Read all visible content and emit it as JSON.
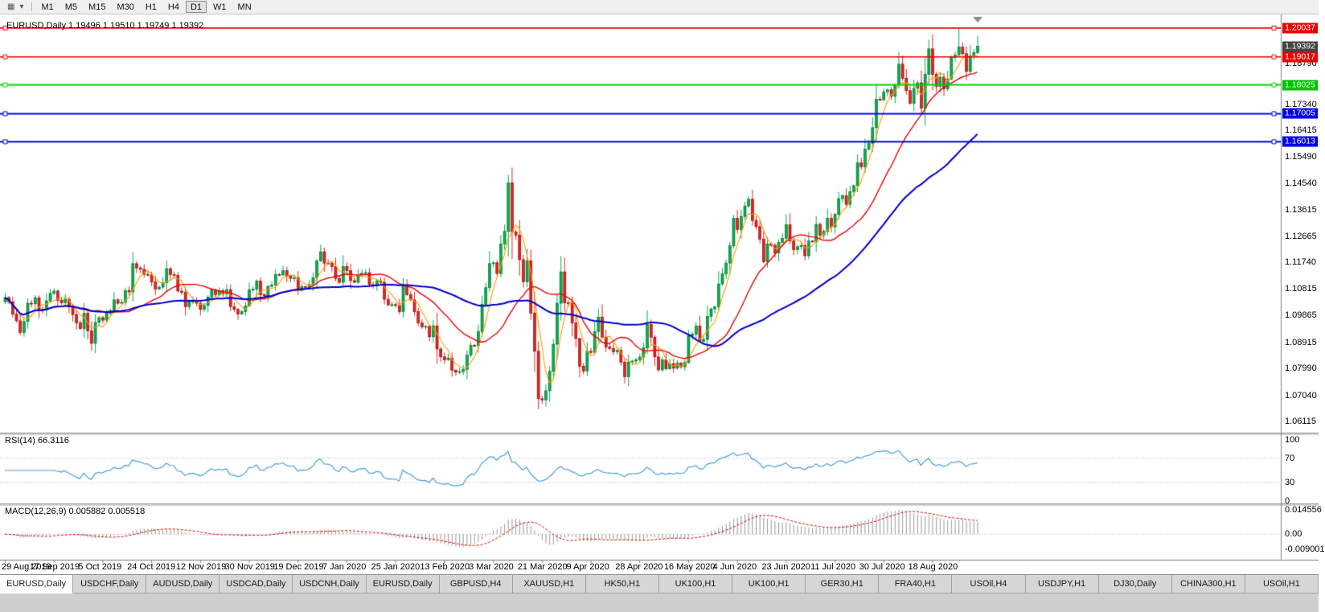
{
  "toolbar": {
    "icons": [
      {
        "name": "chart-type-icon",
        "glyph": "▦"
      },
      {
        "name": "chevron-down-icon",
        "glyph": "▾"
      }
    ],
    "timeframes": [
      {
        "label": "M1",
        "active": false
      },
      {
        "label": "M5",
        "active": false
      },
      {
        "label": "M15",
        "active": false
      },
      {
        "label": "M30",
        "active": false
      },
      {
        "label": "H1",
        "active": false
      },
      {
        "label": "H4",
        "active": false
      },
      {
        "label": "D1",
        "active": true
      },
      {
        "label": "W1",
        "active": false
      },
      {
        "label": "MN",
        "active": false
      }
    ]
  },
  "chart": {
    "title": "EURUSD,Daily 1.19496 1.19510 1.19749 1.19392",
    "price_axis_labels": [
      "1.18790",
      "1.17340",
      "1.16415",
      "1.15490",
      "1.14540",
      "1.13615",
      "1.12665",
      "1.11740",
      "1.10815",
      "1.09865",
      "1.08915",
      "1.07990",
      "1.07040",
      "1.06115"
    ],
    "price_markers": [
      {
        "text": "1.20037",
        "color": "#ee0000"
      },
      {
        "text": "1.19392",
        "color": "#444444"
      },
      {
        "text": "1.19017",
        "color": "#ee0000"
      },
      {
        "text": "1.18025",
        "color": "#00c300"
      },
      {
        "text": "1.17005",
        "color": "#0000ee"
      },
      {
        "text": "1.16013",
        "color": "#0000ee"
      }
    ],
    "hlines": [
      {
        "price": 1.20037,
        "color": "#ee0000",
        "width": 1.6
      },
      {
        "price": 1.19017,
        "color": "#ee0000",
        "width": 1.6
      },
      {
        "price": 1.18025,
        "color": "#00d300",
        "width": 2
      },
      {
        "price": 1.17005,
        "color": "#0000ee",
        "width": 2
      },
      {
        "price": 1.16013,
        "color": "#0000ee",
        "width": 2
      }
    ]
  },
  "rsi_panel": {
    "label": "RSI(14) 66.3116",
    "axis_labels": [
      "100",
      "70",
      "30",
      "0"
    ],
    "levels": [
      70,
      30
    ],
    "line_color": "#4a9edc"
  },
  "macd_panel": {
    "label": "MACD(12,26,9) 0.005882 0.005518",
    "axis_labels": [
      "0.014556",
      "0.00",
      "-0.009001"
    ],
    "histogram_color": "#999999",
    "signal_color": "#e00000"
  },
  "tabs": [
    {
      "label": "EURUSD,Daily",
      "active": true
    },
    {
      "label": "USDCHF,Daily",
      "active": false
    },
    {
      "label": "AUDUSD,Daily",
      "active": false
    },
    {
      "label": "USDCAD,Daily",
      "active": false
    },
    {
      "label": "USDCNH,Daily",
      "active": false
    },
    {
      "label": "EURUSD,Daily",
      "active": false
    },
    {
      "label": "GBPUSD,H4",
      "active": false
    },
    {
      "label": "XAUUSD,H1",
      "active": false
    },
    {
      "label": "HK50,H1",
      "active": false
    },
    {
      "label": "UK100,H1",
      "active": false
    },
    {
      "label": "UK100,H1",
      "active": false
    },
    {
      "label": "GER30,H1",
      "active": false
    },
    {
      "label": "FRA40,H1",
      "active": false
    },
    {
      "label": "USOil,H4",
      "active": false
    },
    {
      "label": "USDJPY,H1",
      "active": false
    },
    {
      "label": "DJ30,Daily",
      "active": false
    },
    {
      "label": "CHINA300,H1",
      "active": false
    },
    {
      "label": "USOil,H1",
      "active": false
    }
  ],
  "chart_data": {
    "type": "candlestick",
    "symbol": "EURUSD",
    "timeframe": "Daily",
    "quote_values": [
      "1.19496",
      "1.19510",
      "1.19749",
      "1.19392"
    ],
    "x_labels": [
      "29 Aug 2019",
      "17 Sep 2019",
      "5 Oct 2019",
      "24 Oct 2019",
      "12 Nov 2019",
      "30 Nov 2019",
      "19 Dec 2019",
      "7 Jan 2020",
      "25 Jan 2020",
      "13 Feb 2020",
      "3 Mar 2020",
      "21 Mar 2020",
      "9 Apr 2020",
      "28 Apr 2020",
      "16 May 2020",
      "4 Jun 2020",
      "23 Jun 2020",
      "11 Jul 2020",
      "30 Jul 2020",
      "18 Aug 2020"
    ],
    "candles_per_label": 13,
    "price_range_estimate": [
      1.0589,
      1.2029
    ],
    "closes": [
      1.105,
      1.1035,
      1.0991,
      1.0968,
      1.0926,
      1.0965,
      1.103,
      1.1028,
      1.1049,
      1.1009,
      1.1006,
      1.1038,
      1.1065,
      1.1073,
      1.104,
      1.1031,
      1.1044,
      1.1017,
      1.099,
      1.096,
      1.094,
      1.0994,
      1.0932,
      1.0888,
      1.0962,
      1.0979,
      1.097,
      1.0995,
      1.1004,
      1.1042,
      1.103,
      1.1033,
      1.1075,
      1.107,
      1.117,
      1.1155,
      1.115,
      1.1132,
      1.113,
      1.1105,
      1.108,
      1.1087,
      1.1102,
      1.1152,
      1.1131,
      1.1128,
      1.1073,
      1.1068,
      1.1018,
      1.1035,
      1.104,
      1.103,
      1.1008,
      1.1022,
      1.1052,
      1.1078,
      1.106,
      1.1074,
      1.1063,
      1.1078,
      1.1018,
      1.1008,
      1.0992,
      1.1,
      1.102,
      1.1078,
      1.108,
      1.1108,
      1.106,
      1.1056,
      1.109,
      1.1094,
      1.1132,
      1.113,
      1.1145,
      1.1125,
      1.1118,
      1.112,
      1.1078,
      1.1088,
      1.1087,
      1.1096,
      1.112,
      1.118,
      1.1212,
      1.1172,
      1.1171,
      1.116,
      1.1118,
      1.1104,
      1.116,
      1.1145,
      1.111,
      1.1104,
      1.1132,
      1.1136,
      1.1138,
      1.1096,
      1.1092,
      1.1108,
      1.1104,
      1.1044,
      1.1024,
      1.1025,
      1.1022,
      1.1,
      1.1093,
      1.106,
      1.1042,
      1.1,
      1.096,
      1.0946,
      1.0948,
      1.0911,
      1.095,
      1.0868,
      1.084,
      1.083,
      1.0836,
      1.0792,
      1.0786,
      1.0788,
      1.0795,
      1.0846,
      1.0881,
      1.088,
      1.093,
      1.1026,
      1.1085,
      1.117,
      1.1173,
      1.1135,
      1.1239,
      1.1284,
      1.1456,
      1.1282,
      1.1271,
      1.1184,
      1.1106,
      1.118,
      1.0995,
      1.086,
      1.0692,
      1.0688,
      1.072,
      1.0789,
      1.0885,
      1.103,
      1.1141,
      1.1031,
      1.103,
      1.096,
      1.0905,
      1.0807,
      1.079,
      1.086,
      1.0856,
      1.093,
      1.098,
      1.091,
      1.0875,
      1.087,
      1.0858,
      1.0863,
      1.0821,
      1.077,
      1.0822,
      1.0825,
      1.083,
      1.0839,
      1.0872,
      1.0955,
      1.091,
      1.084,
      1.0794,
      1.083,
      1.0798,
      1.0816,
      1.08,
      1.0818,
      1.0805,
      1.082,
      1.0915,
      1.092,
      1.0949,
      1.0895,
      1.0902,
      1.0983,
      1.101,
      1.1017,
      1.1098,
      1.1134,
      1.1172,
      1.1233,
      1.133,
      1.1291,
      1.1337,
      1.1374,
      1.1398,
      1.1323,
      1.1301,
      1.1257,
      1.1177,
      1.124,
      1.1235,
      1.1208,
      1.1245,
      1.126,
      1.1308,
      1.125,
      1.1219,
      1.123,
      1.1234,
      1.1198,
      1.125,
      1.1248,
      1.1309,
      1.1271,
      1.1284,
      1.133,
      1.13,
      1.1344,
      1.14,
      1.141,
      1.138,
      1.1425,
      1.1446,
      1.1527,
      1.1512,
      1.1575,
      1.1596,
      1.1651,
      1.1751,
      1.175,
      1.1778,
      1.1785,
      1.1762,
      1.1802,
      1.1876,
      1.1826,
      1.1782,
      1.1737,
      1.179,
      1.181,
      1.172,
      1.184,
      1.193,
      1.184,
      1.1797,
      1.183,
      1.1788,
      1.1823,
      1.19,
      1.1908,
      1.1936,
      1.1913,
      1.185,
      1.1905,
      1.1917,
      1.1939
    ],
    "wick_overrides": {
      "254": {
        "high": 1.2003
      },
      "259": {
        "high": 1.19749,
        "low": 1.191
      }
    },
    "candle_colors": {
      "up_fill": "#00b050",
      "up_stroke": "#006622",
      "down_fill": "#e8241d",
      "down_stroke": "#7a0000"
    },
    "moving_averages": [
      {
        "name": "fast",
        "period": 5,
        "color": "#ff9c00",
        "width": 1.1
      },
      {
        "name": "medium",
        "period": 20,
        "color": "#ee0000",
        "width": 1.4
      },
      {
        "name": "slow",
        "period": 50,
        "color": "#0000c8",
        "width": 2
      }
    ],
    "indicators": {
      "rsi": {
        "period": 14,
        "current": 66.3116
      },
      "macd": {
        "fast": 12,
        "slow": 26,
        "signal": 9,
        "current": [
          0.005882,
          0.005518
        ]
      }
    },
    "layout": {
      "background": "#ffffff",
      "grid": false,
      "legend": false
    }
  }
}
